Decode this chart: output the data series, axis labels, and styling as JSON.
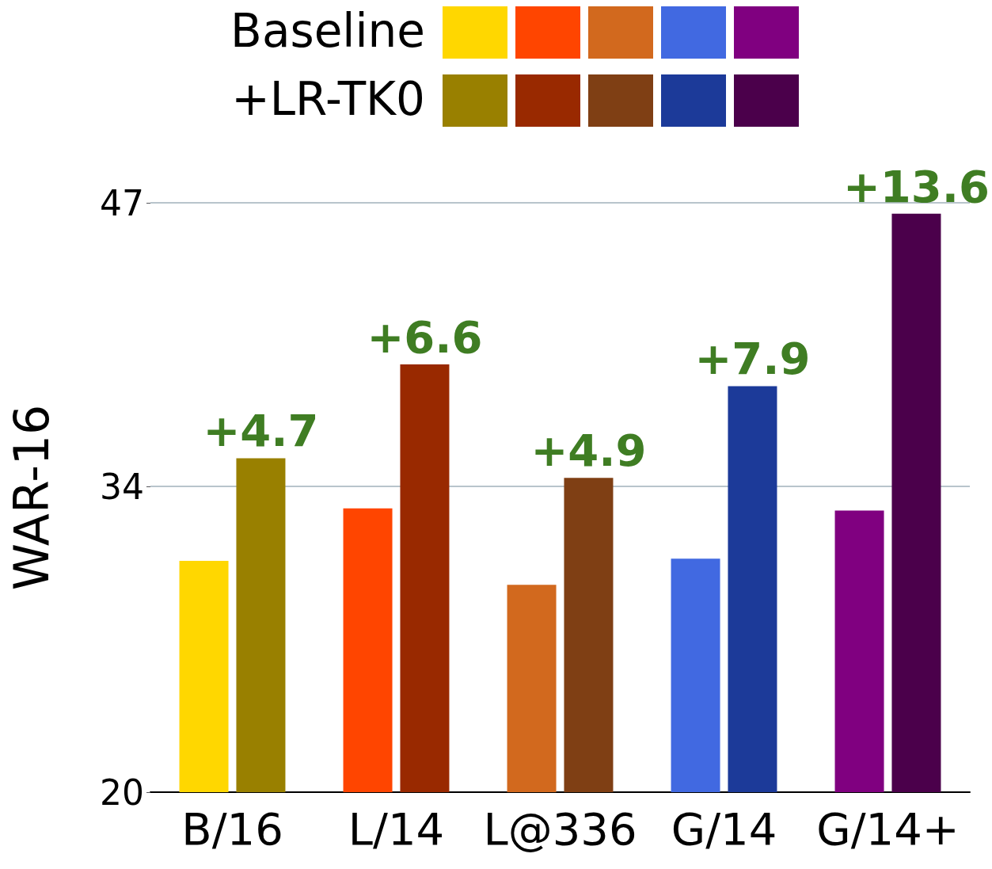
{
  "chart_data": {
    "type": "bar",
    "ylabel": "WAR-16",
    "categories": [
      "B/16",
      "L/14",
      "L@336",
      "G/14",
      "G/14+"
    ],
    "series": [
      {
        "name": "Baseline",
        "colors": [
          "#ffd700",
          "#ff4500",
          "#d2691e",
          "#4169e1",
          "#800080"
        ],
        "values": [
          30.6,
          33.0,
          29.5,
          30.7,
          32.9
        ]
      },
      {
        "name": "+LR-TK0",
        "colors": [
          "#998000",
          "#992900",
          "#7f3f14",
          "#1c3a99",
          "#4b004b"
        ],
        "values": [
          35.3,
          39.6,
          34.4,
          38.6,
          46.5
        ]
      }
    ],
    "annotations": [
      {
        "text": "+4.7",
        "x": "B/16",
        "y": 35.3
      },
      {
        "text": "+6.6",
        "x": "L/14",
        "y": 39.6
      },
      {
        "text": "+4.9",
        "x": "L@336",
        "y": 34.4
      },
      {
        "text": "+7.9",
        "x": "G/14",
        "y": 38.6
      },
      {
        "text": "+13.6",
        "x": "G/14+",
        "y": 46.5
      }
    ],
    "ylim": [
      20,
      47
    ],
    "yticks": [
      20,
      34,
      47
    ],
    "grid": "y",
    "legend": "top"
  }
}
